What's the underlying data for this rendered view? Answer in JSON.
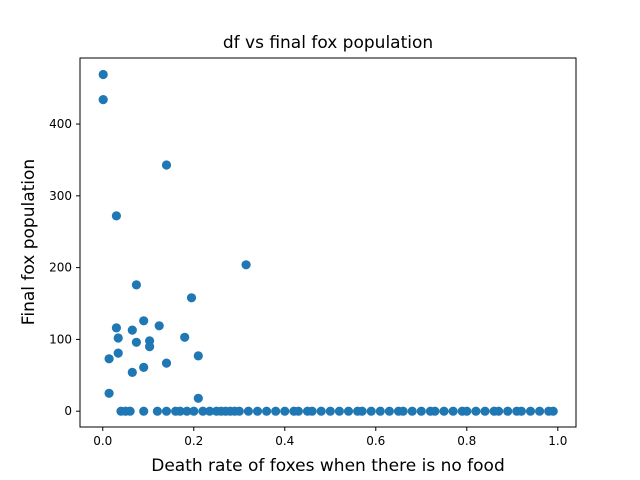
{
  "chart_data": {
    "type": "scatter",
    "title": "df vs final fox population",
    "xlabel": "Death rate of foxes when there is no food",
    "ylabel": "Final fox population",
    "xlim": [
      -0.05,
      1.04
    ],
    "ylim": [
      -22,
      492
    ],
    "xticks": [
      0.0,
      0.2,
      0.4,
      0.6,
      0.8,
      1.0
    ],
    "xtick_labels": [
      "0.0",
      "0.2",
      "0.4",
      "0.6",
      "0.8",
      "1.0"
    ],
    "yticks": [
      0,
      100,
      200,
      300,
      400
    ],
    "ytick_labels": [
      "0",
      "100",
      "200",
      "300",
      "400"
    ],
    "marker_color": "#1f77b4",
    "grid": false,
    "series": [
      {
        "points": [
          [
            0.001,
            469
          ],
          [
            0.001,
            434
          ],
          [
            0.014,
            73
          ],
          [
            0.014,
            25
          ],
          [
            0.03,
            272
          ],
          [
            0.03,
            116
          ],
          [
            0.034,
            102
          ],
          [
            0.034,
            81
          ],
          [
            0.04,
            0
          ],
          [
            0.05,
            0
          ],
          [
            0.06,
            0
          ],
          [
            0.065,
            113
          ],
          [
            0.065,
            54
          ],
          [
            0.074,
            176
          ],
          [
            0.074,
            96
          ],
          [
            0.09,
            126
          ],
          [
            0.09,
            61
          ],
          [
            0.09,
            0
          ],
          [
            0.103,
            98
          ],
          [
            0.103,
            90
          ],
          [
            0.12,
            0
          ],
          [
            0.124,
            119
          ],
          [
            0.14,
            343
          ],
          [
            0.14,
            67
          ],
          [
            0.14,
            0
          ],
          [
            0.16,
            0
          ],
          [
            0.17,
            0
          ],
          [
            0.18,
            103
          ],
          [
            0.185,
            0
          ],
          [
            0.195,
            158
          ],
          [
            0.2,
            0
          ],
          [
            0.21,
            77
          ],
          [
            0.21,
            18
          ],
          [
            0.22,
            0
          ],
          [
            0.235,
            0
          ],
          [
            0.25,
            0
          ],
          [
            0.26,
            0
          ],
          [
            0.27,
            0
          ],
          [
            0.28,
            0
          ],
          [
            0.29,
            0
          ],
          [
            0.3,
            0
          ],
          [
            0.315,
            204
          ],
          [
            0.32,
            0
          ],
          [
            0.34,
            0
          ],
          [
            0.36,
            0
          ],
          [
            0.38,
            0
          ],
          [
            0.4,
            0
          ],
          [
            0.42,
            0
          ],
          [
            0.43,
            0
          ],
          [
            0.45,
            0
          ],
          [
            0.46,
            0
          ],
          [
            0.48,
            0
          ],
          [
            0.5,
            0
          ],
          [
            0.52,
            0
          ],
          [
            0.54,
            0
          ],
          [
            0.56,
            0
          ],
          [
            0.57,
            0
          ],
          [
            0.59,
            0
          ],
          [
            0.61,
            0
          ],
          [
            0.63,
            0
          ],
          [
            0.65,
            0
          ],
          [
            0.66,
            0
          ],
          [
            0.68,
            0
          ],
          [
            0.7,
            0
          ],
          [
            0.72,
            0
          ],
          [
            0.73,
            0
          ],
          [
            0.75,
            0
          ],
          [
            0.77,
            0
          ],
          [
            0.79,
            0
          ],
          [
            0.8,
            0
          ],
          [
            0.82,
            0
          ],
          [
            0.84,
            0
          ],
          [
            0.86,
            0
          ],
          [
            0.87,
            0
          ],
          [
            0.89,
            0
          ],
          [
            0.91,
            0
          ],
          [
            0.92,
            0
          ],
          [
            0.94,
            0
          ],
          [
            0.96,
            0
          ],
          [
            0.98,
            0
          ],
          [
            0.99,
            0
          ]
        ]
      }
    ]
  }
}
